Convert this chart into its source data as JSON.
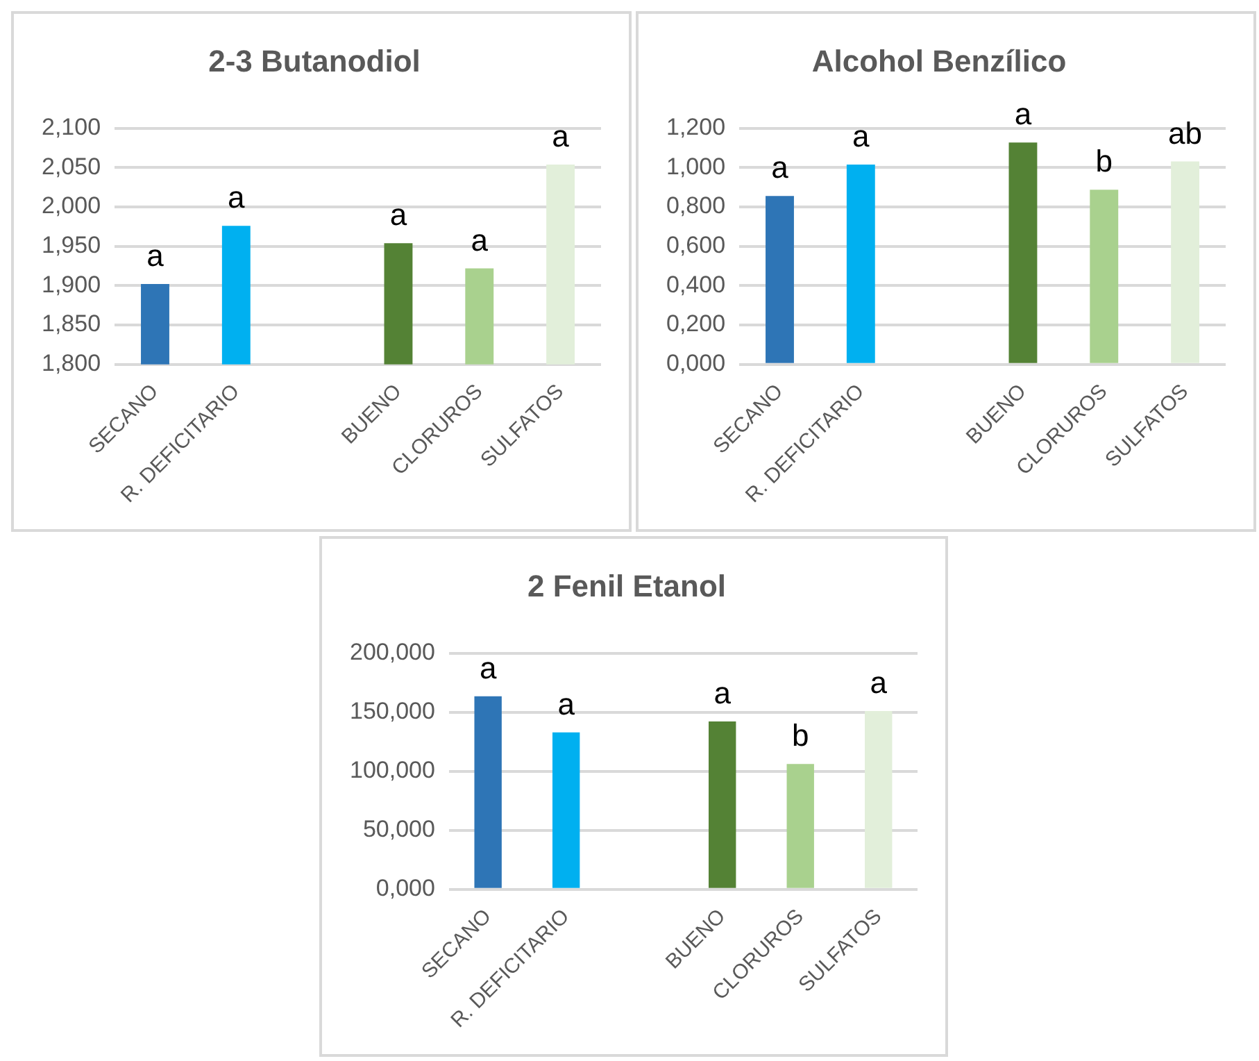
{
  "chart_data": [
    {
      "type": "bar",
      "title": "2-3 Butanodiol",
      "categories": [
        "SECANO",
        "R. DEFICITARIO",
        null,
        "BUENO",
        "CLORUROS",
        "SULFATOS"
      ],
      "values": [
        1.902,
        1.976,
        null,
        1.954,
        1.922,
        2.054
      ],
      "colors": [
        "#2e75b6",
        "#00b0f0",
        "#2e75b6",
        "#548235",
        "#a9d18e",
        "#e2efda"
      ],
      "value_labels": [
        "a",
        "a",
        null,
        "a",
        "a",
        "a"
      ],
      "ylim": [
        1.8,
        2.1
      ],
      "yticks": [
        {
          "value": 1.8,
          "label": "1,800"
        },
        {
          "value": 1.85,
          "label": "1,850"
        },
        {
          "value": 1.9,
          "label": "1,900"
        },
        {
          "value": 1.95,
          "label": "1,950"
        },
        {
          "value": 2.0,
          "label": "2,000"
        },
        {
          "value": 2.05,
          "label": "2,050"
        },
        {
          "value": 2.1,
          "label": "2,100"
        }
      ],
      "grid": "y",
      "legend": false
    },
    {
      "type": "bar",
      "title": "Alcohol Benzílico",
      "categories": [
        "SECANO",
        "R. DEFICITARIO",
        null,
        "BUENO",
        "CLORUROS",
        "SULFATOS"
      ],
      "values": [
        0.856,
        1.016,
        null,
        1.128,
        0.888,
        1.032
      ],
      "colors": [
        "#2e75b6",
        "#00b0f0",
        "#2e75b6",
        "#548235",
        "#a9d18e",
        "#e2efda"
      ],
      "value_labels": [
        "a",
        "a",
        null,
        "a",
        "b",
        "ab"
      ],
      "ylim": [
        0,
        1.2
      ],
      "yticks": [
        {
          "value": 0,
          "label": "0,000"
        },
        {
          "value": 0.2,
          "label": "0,200"
        },
        {
          "value": 0.4,
          "label": "0,400"
        },
        {
          "value": 0.6,
          "label": "0,600"
        },
        {
          "value": 0.8,
          "label": "0,800"
        },
        {
          "value": 1.0,
          "label": "1,000"
        },
        {
          "value": 1.2,
          "label": "1,200"
        }
      ],
      "grid": "y",
      "legend": false
    },
    {
      "type": "bar",
      "title": "2 Fenil Etanol",
      "categories": [
        "SECANO",
        "R. DEFICITARIO",
        null,
        "BUENO",
        "CLORUROS",
        "SULFATOS"
      ],
      "values": [
        163.6,
        132.9,
        null,
        142.2,
        106.2,
        151
      ],
      "colors": [
        "#2e75b6",
        "#00b0f0",
        "#2e75b6",
        "#548235",
        "#a9d18e",
        "#e2efda"
      ],
      "value_labels": [
        "a",
        "a",
        null,
        "a",
        "b",
        "a"
      ],
      "ylim": [
        0,
        200
      ],
      "yticks": [
        {
          "value": 0,
          "label": "0,000"
        },
        {
          "value": 50,
          "label": "50,000"
        },
        {
          "value": 100,
          "label": "100,000"
        },
        {
          "value": 150,
          "label": "150,000"
        },
        {
          "value": 200,
          "label": "200,000"
        }
      ],
      "grid": "y",
      "legend": false
    }
  ]
}
